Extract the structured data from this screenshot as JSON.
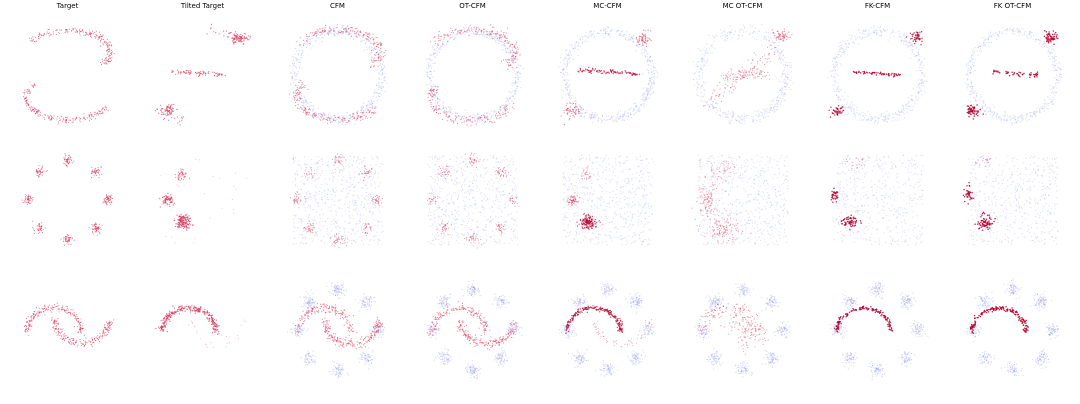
{
  "chart_data": {
    "type": "scatter",
    "layout": "grid",
    "grid_rows": 3,
    "grid_cols": 8,
    "column_titles": [
      "Target",
      "Tilted Target",
      "CFM",
      "OT-CFM",
      "MC-CFM",
      "MC OT-CFM",
      "FK-CFM",
      "FK OT-CFM"
    ],
    "rows": [
      "s-curve",
      "8-gaussians",
      "two-moons"
    ],
    "axes": "off",
    "colors": {
      "target_samples": "#d6375a",
      "tilted_samples": "#b3002d",
      "source_samples": "#8c96e6"
    }
  }
}
